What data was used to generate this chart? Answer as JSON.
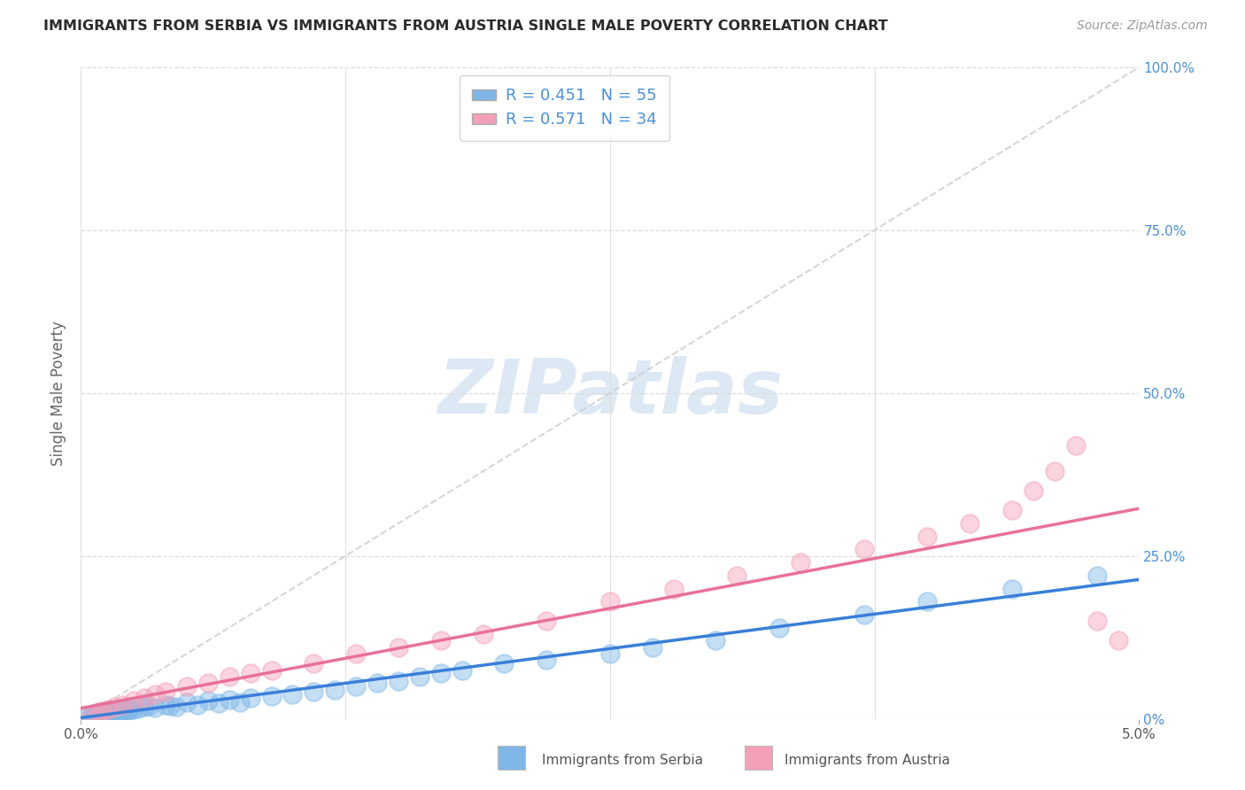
{
  "title": "IMMIGRANTS FROM SERBIA VS IMMIGRANTS FROM AUSTRIA SINGLE MALE POVERTY CORRELATION CHART",
  "source": "Source: ZipAtlas.com",
  "ylabel": "Single Male Poverty",
  "serbia_R": 0.451,
  "serbia_N": 55,
  "austria_R": 0.571,
  "austria_N": 34,
  "serbia_color": "#7EB6E8",
  "austria_color": "#F4A0B8",
  "serbia_line_color": "#3A7FD9",
  "austria_line_color": "#E8709A",
  "diag_line_color": "#CCCCCC",
  "grid_color": "#DDDDDD",
  "title_color": "#2B2B2B",
  "right_tick_color": "#4A90D9",
  "watermark_color": "#DDE8F5",
  "watermark_text": "ZIPatlas",
  "background_color": "#FFFFFF",
  "xmin": 0.0,
  "xmax": 0.05,
  "ymin": 0.0,
  "ymax": 1.0,
  "serbia_x": [
    0.0003,
    0.0005,
    0.0006,
    0.0007,
    0.0008,
    0.0009,
    0.001,
    0.0011,
    0.0012,
    0.0013,
    0.0014,
    0.0015,
    0.0016,
    0.0017,
    0.0018,
    0.0019,
    0.002,
    0.0021,
    0.0022,
    0.0023,
    0.0025,
    0.0027,
    0.003,
    0.0032,
    0.0035,
    0.004,
    0.0042,
    0.0045,
    0.005,
    0.0055,
    0.006,
    0.0065,
    0.007,
    0.0075,
    0.008,
    0.009,
    0.01,
    0.011,
    0.012,
    0.013,
    0.014,
    0.015,
    0.016,
    0.017,
    0.018,
    0.02,
    0.022,
    0.025,
    0.027,
    0.03,
    0.033,
    0.037,
    0.04,
    0.044,
    0.048
  ],
  "serbia_y": [
    0.005,
    0.005,
    0.008,
    0.006,
    0.007,
    0.01,
    0.009,
    0.008,
    0.012,
    0.01,
    0.011,
    0.013,
    0.01,
    0.012,
    0.014,
    0.011,
    0.013,
    0.015,
    0.012,
    0.014,
    0.015,
    0.016,
    0.018,
    0.02,
    0.017,
    0.022,
    0.02,
    0.018,
    0.025,
    0.022,
    0.028,
    0.024,
    0.03,
    0.026,
    0.032,
    0.035,
    0.038,
    0.042,
    0.045,
    0.05,
    0.055,
    0.058,
    0.065,
    0.07,
    0.075,
    0.085,
    0.09,
    0.1,
    0.11,
    0.12,
    0.14,
    0.16,
    0.18,
    0.2,
    0.22
  ],
  "austria_x": [
    0.0005,
    0.0008,
    0.001,
    0.0013,
    0.0016,
    0.002,
    0.0025,
    0.003,
    0.0035,
    0.004,
    0.005,
    0.006,
    0.007,
    0.008,
    0.009,
    0.011,
    0.013,
    0.015,
    0.017,
    0.019,
    0.022,
    0.025,
    0.028,
    0.031,
    0.034,
    0.037,
    0.04,
    0.042,
    0.044,
    0.045,
    0.046,
    0.047,
    0.048,
    0.049
  ],
  "austria_y": [
    0.006,
    0.01,
    0.012,
    0.015,
    0.018,
    0.022,
    0.028,
    0.032,
    0.038,
    0.042,
    0.05,
    0.055,
    0.065,
    0.07,
    0.075,
    0.085,
    0.1,
    0.11,
    0.12,
    0.13,
    0.15,
    0.18,
    0.2,
    0.22,
    0.24,
    0.26,
    0.28,
    0.3,
    0.32,
    0.35,
    0.38,
    0.42,
    0.15,
    0.12
  ]
}
